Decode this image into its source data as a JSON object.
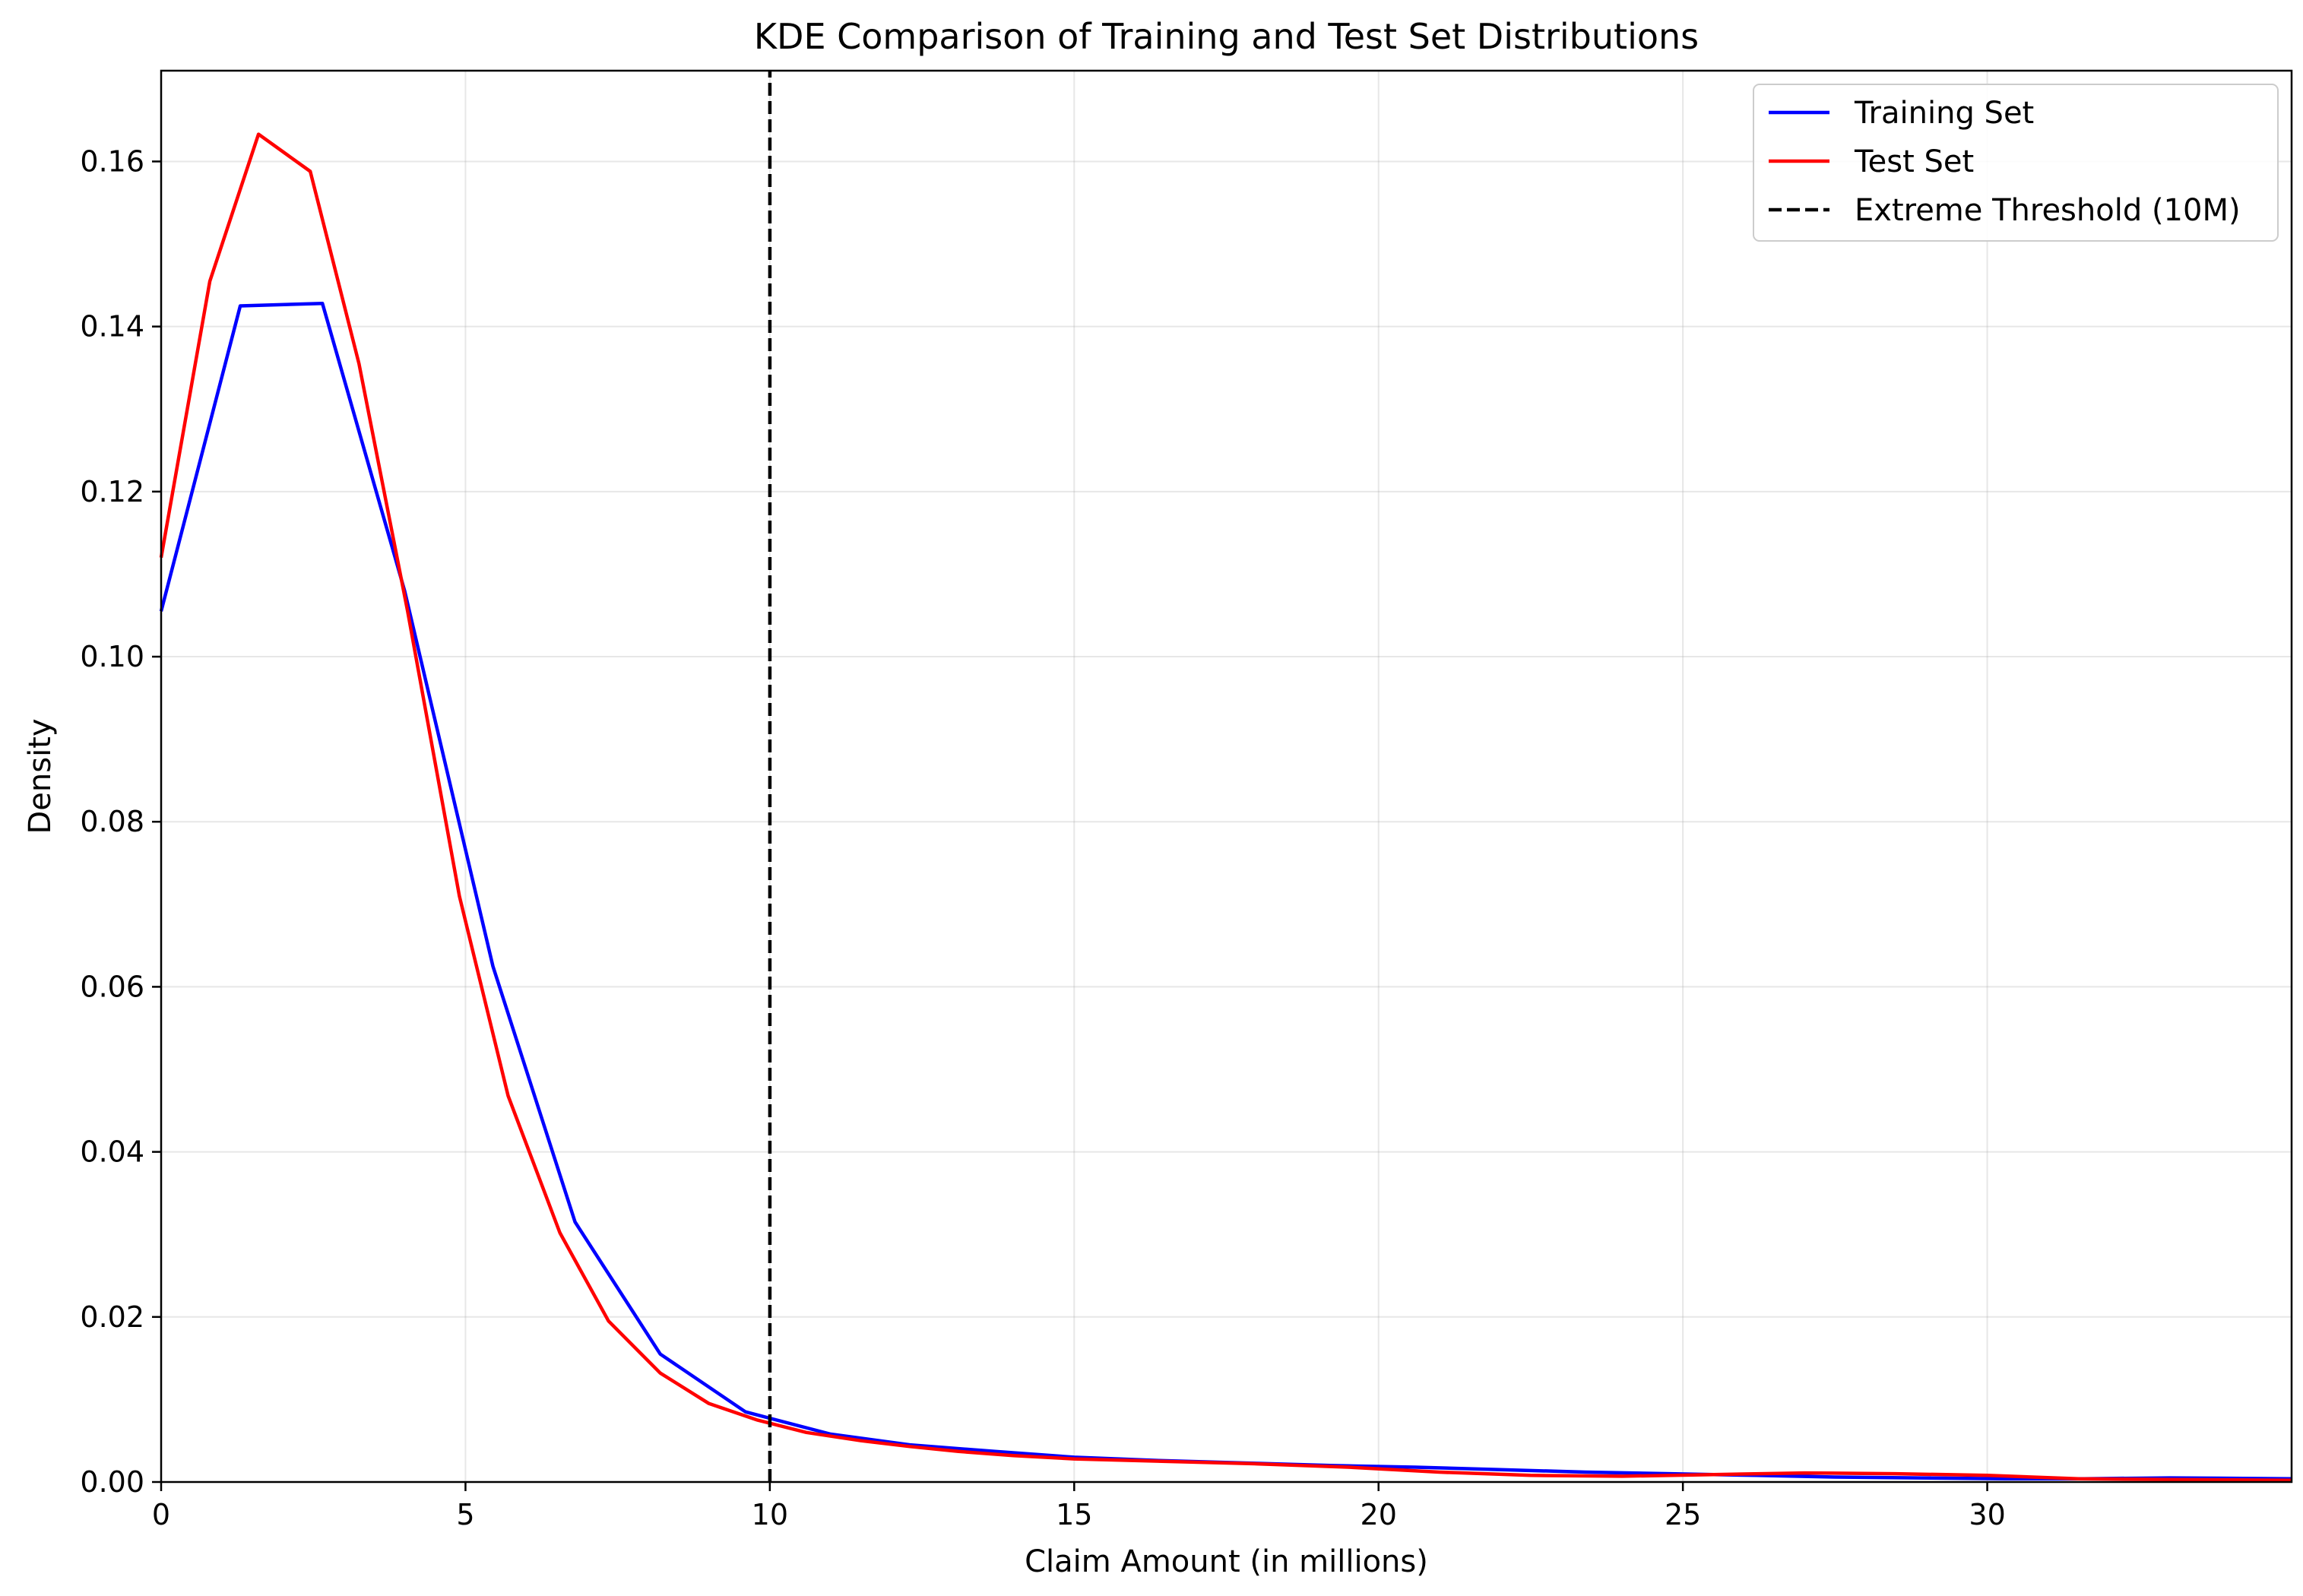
{
  "chart_data": {
    "type": "line",
    "title": "KDE Comparison of Training and Test Set Distributions",
    "xlabel": "Claim Amount (in millions)",
    "ylabel": "Density",
    "xlim": [
      0,
      35
    ],
    "ylim": [
      0,
      0.171
    ],
    "xticks": [
      0,
      5,
      10,
      15,
      20,
      25,
      30
    ],
    "xtick_labels": [
      "0",
      "5",
      "10",
      "15",
      "20",
      "25",
      "30"
    ],
    "yticks": [
      0,
      0.02,
      0.04,
      0.06,
      0.08,
      0.1,
      0.12,
      0.14,
      0.16
    ],
    "ytick_labels": [
      "0.00",
      "0.02",
      "0.04",
      "0.06",
      "0.08",
      "0.10",
      "0.12",
      "0.14",
      "0.16"
    ],
    "grid": true,
    "legend_position": "top-right",
    "series": [
      {
        "name": "Training Set",
        "color": "#0000ff",
        "style": "solid",
        "x": [
          0,
          1.3,
          2.65,
          4.0,
          5.45,
          6.8,
          8.2,
          9.6,
          11.0,
          12.3,
          13.7,
          15.0,
          16.4,
          17.8,
          19.2,
          20.6,
          22.0,
          23.4,
          24.8,
          26.2,
          27.5,
          28.9,
          30.3,
          31.6,
          33.0,
          35.0
        ],
        "y": [
          0.1055,
          0.1425,
          0.1428,
          0.108,
          0.0625,
          0.0315,
          0.0155,
          0.0085,
          0.0058,
          0.0045,
          0.0037,
          0.003,
          0.0026,
          0.0023,
          0.002,
          0.0018,
          0.0015,
          0.0012,
          0.001,
          0.0008,
          0.0006,
          0.0005,
          0.0004,
          0.0004,
          0.0005,
          0.0004
        ]
      },
      {
        "name": "Test Set",
        "color": "#ff0000",
        "style": "solid",
        "x": [
          0,
          0.8,
          1.6,
          2.45,
          3.25,
          4.05,
          4.9,
          5.7,
          6.55,
          7.35,
          8.2,
          9.0,
          9.8,
          10.6,
          11.5,
          12.3,
          13.1,
          14.0,
          15.0,
          16.5,
          18.0,
          19.5,
          21.0,
          22.5,
          24.0,
          25.5,
          27.0,
          28.5,
          30.0,
          31.5,
          33.0,
          35.0
        ],
        "y": [
          0.112,
          0.1455,
          0.1633,
          0.1588,
          0.1355,
          0.1055,
          0.071,
          0.0468,
          0.0302,
          0.0195,
          0.0132,
          0.0095,
          0.0075,
          0.006,
          0.005,
          0.0043,
          0.0037,
          0.0032,
          0.0028,
          0.0025,
          0.0022,
          0.0018,
          0.0012,
          0.0008,
          0.0007,
          0.0009,
          0.0011,
          0.001,
          0.0008,
          0.0004,
          0.0003,
          0.0002
        ]
      },
      {
        "name": "Extreme Threshold (10M)",
        "color": "#000000",
        "style": "dashed",
        "x": [
          10,
          10
        ],
        "y": [
          0,
          0.171
        ]
      }
    ]
  }
}
